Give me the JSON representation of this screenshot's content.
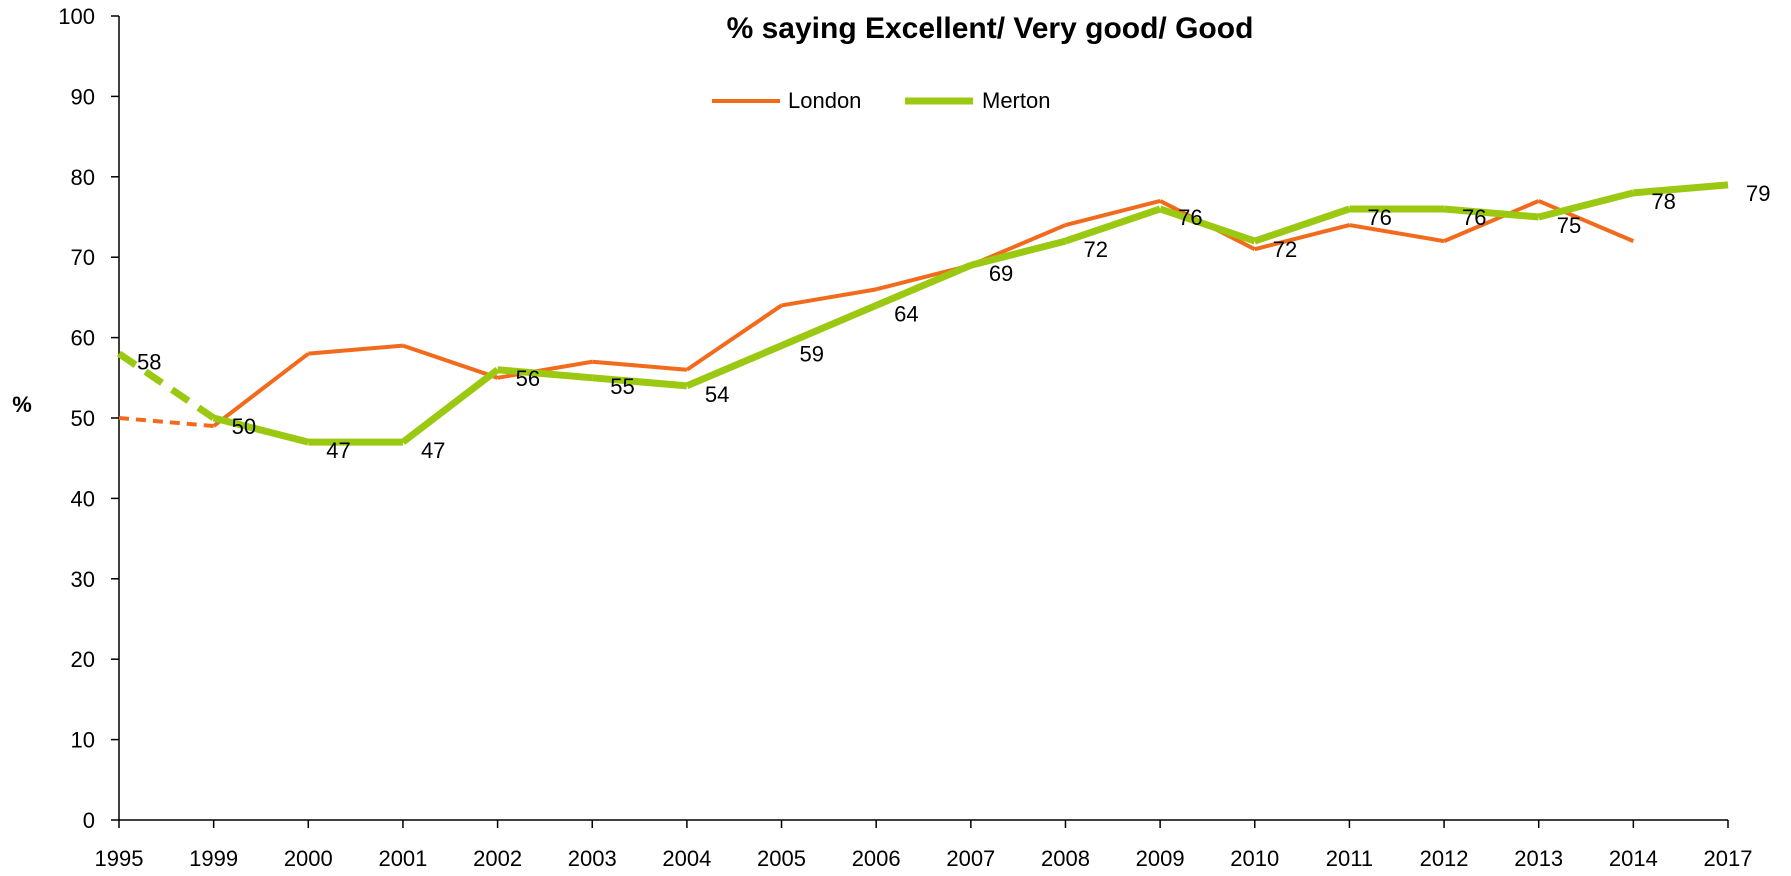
{
  "chart_data": {
    "type": "line",
    "title": "% saying Excellent/ Very good/ Good",
    "xlabel": "",
    "ylabel": "%",
    "categories": [
      "1995",
      "1999",
      "2000",
      "2001",
      "2002",
      "2003",
      "2004",
      "2005",
      "2006",
      "2007",
      "2008",
      "2009",
      "2010",
      "2011",
      "2012",
      "2013",
      "2014",
      "2017"
    ],
    "ylim": [
      0,
      100
    ],
    "yticks": [
      0,
      10,
      20,
      30,
      40,
      50,
      60,
      70,
      80,
      90,
      100
    ],
    "grid": false,
    "legend_position": "top-center",
    "series": [
      {
        "name": "London",
        "color": "#F26B1D",
        "values": [
          50,
          49,
          58,
          59,
          55,
          57,
          56,
          64,
          66,
          69,
          74,
          77,
          71,
          74,
          72,
          77,
          72,
          null
        ],
        "dashed_segments": [
          [
            0,
            1
          ]
        ],
        "show_labels": false
      },
      {
        "name": "Merton",
        "color": "#9BC912",
        "values": [
          58,
          50,
          47,
          47,
          56,
          55,
          54,
          59,
          64,
          69,
          72,
          76,
          72,
          76,
          76,
          75,
          78,
          79
        ],
        "labels": [
          "58",
          "50",
          "47",
          "47",
          "56",
          "55",
          "54",
          "59",
          "64",
          "69",
          "72",
          "76",
          "72",
          "76",
          "76",
          "75",
          "78",
          "79"
        ],
        "dashed_segments": [
          [
            0,
            1
          ]
        ],
        "show_labels": true
      }
    ]
  }
}
